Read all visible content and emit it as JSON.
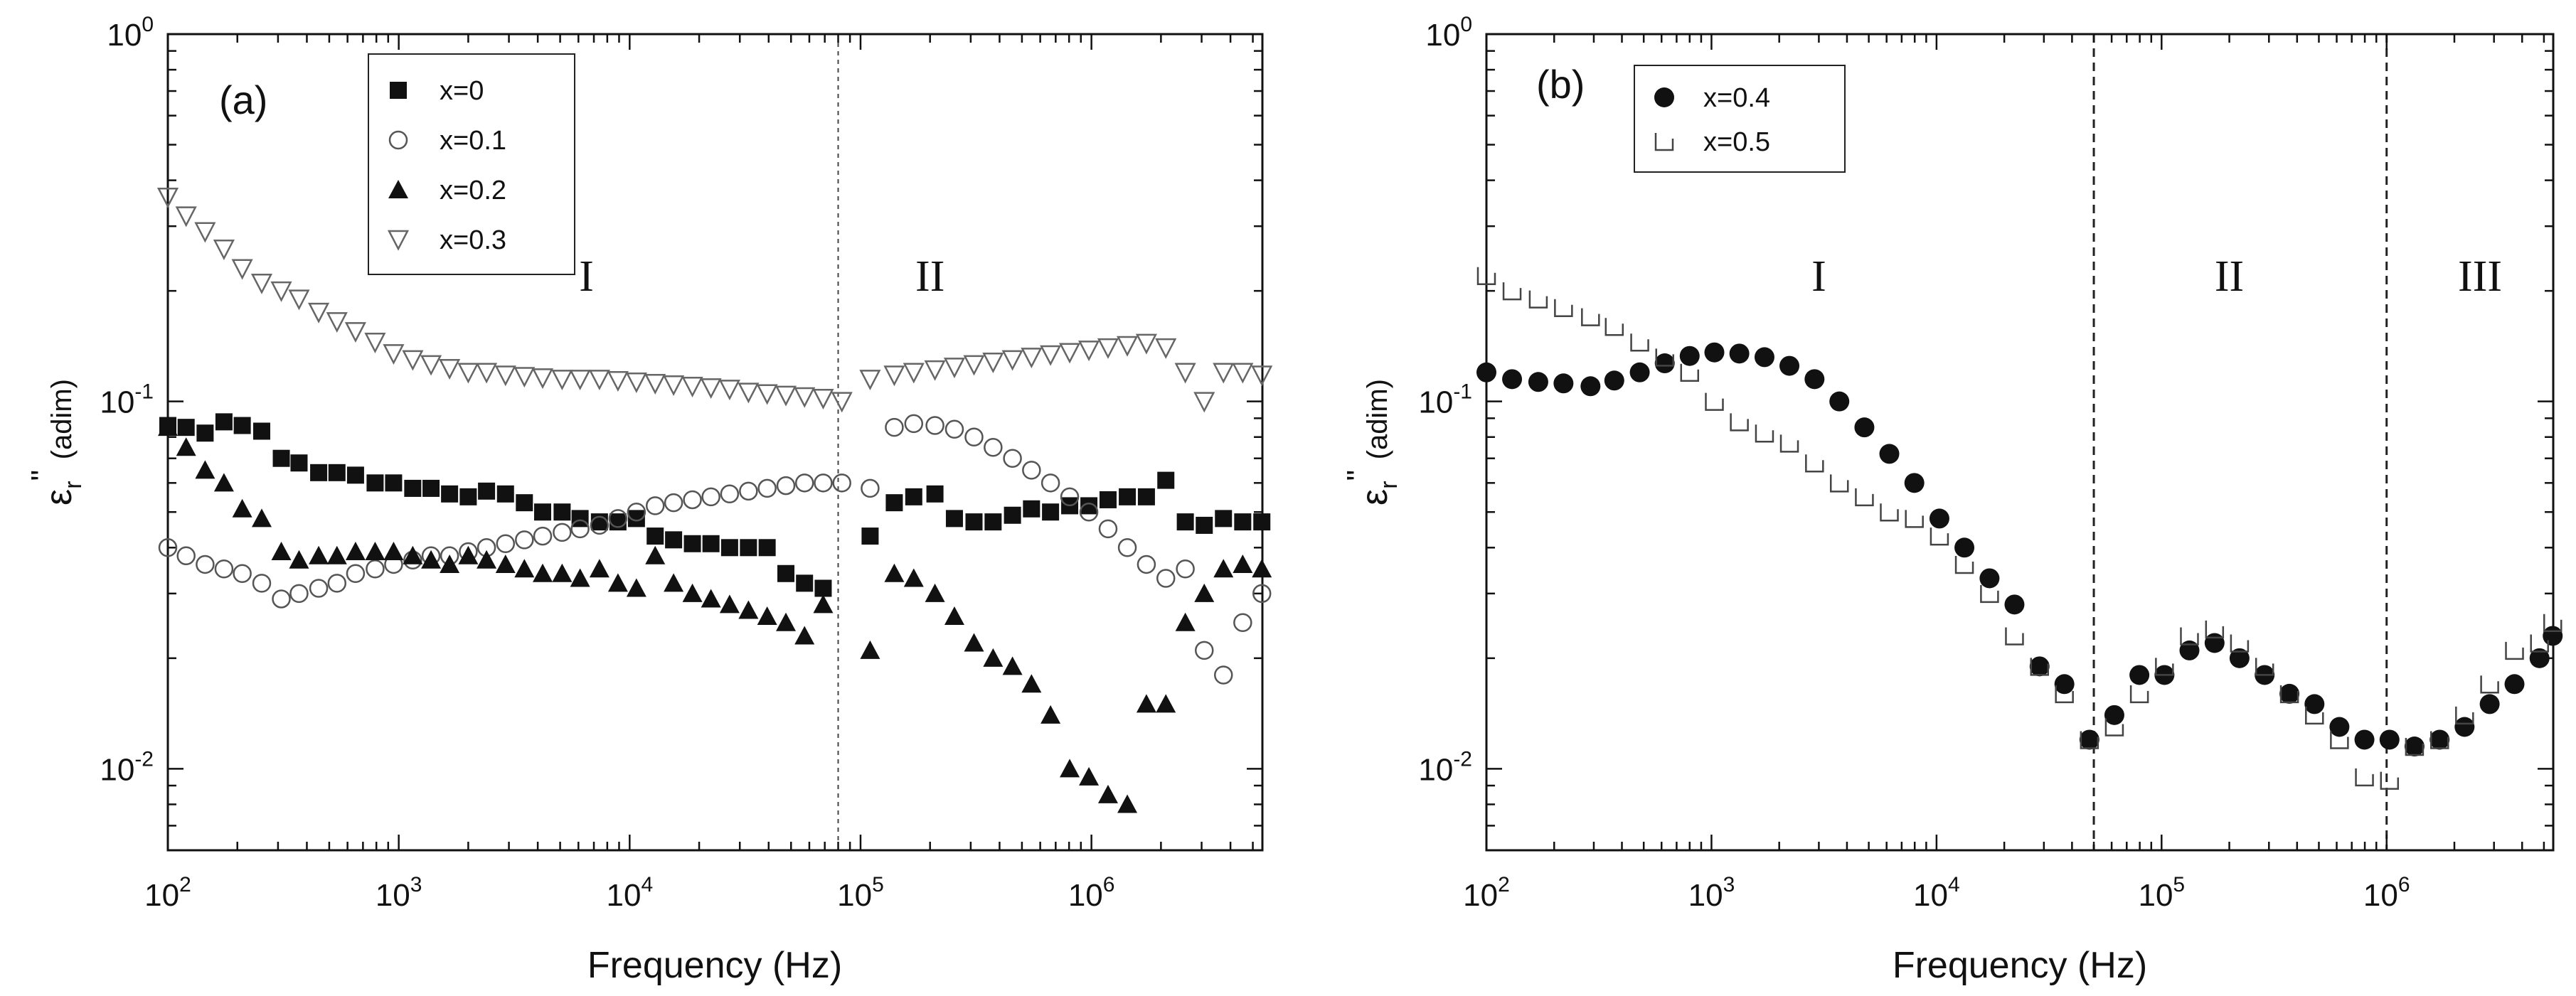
{
  "chart_data": [
    {
      "panel": "(a)",
      "type": "scatter",
      "xscale": "log",
      "yscale": "log",
      "xlim": [
        100,
        5500000
      ],
      "ylim": [
        0.006,
        1
      ],
      "xlabel": "Frequency (Hz)",
      "ylabel": "εr\" (adim)",
      "ylabel_main": "ε",
      "ylabel_sub": "r",
      "ylabel_sup": "\"",
      "ylabel_units": "(adim)",
      "xticks": [
        {
          "value": 100,
          "base": "10",
          "exp": "2"
        },
        {
          "value": 1000,
          "base": "10",
          "exp": "3"
        },
        {
          "value": 10000,
          "base": "10",
          "exp": "4"
        },
        {
          "value": 100000,
          "base": "10",
          "exp": "5"
        },
        {
          "value": 1000000,
          "base": "10",
          "exp": "6"
        }
      ],
      "yticks": [
        {
          "value": 0.01,
          "base": "10",
          "exp": "-2"
        },
        {
          "value": 0.1,
          "base": "10",
          "exp": "-1"
        },
        {
          "value": 1,
          "base": "10",
          "exp": "0"
        }
      ],
      "vlines": [
        80000
      ],
      "regions": [
        {
          "label": "I",
          "x": 6500,
          "y": 0.2
        },
        {
          "label": "II",
          "x": 200000,
          "y": 0.2
        }
      ],
      "legend_position": "top-left",
      "series": [
        {
          "name": "x=0",
          "marker": "square-filled",
          "x": [
            100,
            120,
            145,
            175,
            210,
            255,
            310,
            370,
            450,
            540,
            650,
            790,
            950,
            1150,
            1380,
            1660,
            2000,
            2400,
            2900,
            3500,
            4200,
            5100,
            6100,
            7400,
            8900,
            10700,
            12900,
            15500,
            18700,
            22500,
            27100,
            32700,
            39400,
            47500,
            57200,
            68900,
            110000,
            140000,
            170000,
            210000,
            255000,
            310000,
            375000,
            455000,
            550000,
            665000,
            805000,
            975000,
            1180000,
            1430000,
            1730000,
            2100000,
            2550000,
            3080000,
            3730000,
            4520000,
            5470000
          ],
          "y": [
            0.086,
            0.085,
            0.082,
            0.088,
            0.086,
            0.083,
            0.07,
            0.068,
            0.064,
            0.064,
            0.063,
            0.06,
            0.06,
            0.058,
            0.058,
            0.056,
            0.055,
            0.057,
            0.056,
            0.053,
            0.05,
            0.05,
            0.048,
            0.047,
            0.047,
            0.048,
            0.043,
            0.042,
            0.041,
            0.041,
            0.04,
            0.04,
            0.04,
            0.034,
            0.032,
            0.031,
            0.043,
            0.053,
            0.055,
            0.056,
            0.048,
            0.047,
            0.047,
            0.049,
            0.051,
            0.05,
            0.052,
            0.052,
            0.054,
            0.055,
            0.055,
            0.061,
            0.047,
            0.046,
            0.048,
            0.047,
            0.047
          ]
        },
        {
          "name": "x=0.1",
          "marker": "circle-open",
          "x": [
            100,
            120,
            145,
            175,
            210,
            255,
            310,
            370,
            450,
            540,
            650,
            790,
            950,
            1150,
            1380,
            1660,
            2000,
            2400,
            2900,
            3500,
            4200,
            5100,
            6100,
            7400,
            8900,
            10700,
            12900,
            15500,
            18700,
            22500,
            27100,
            32700,
            39400,
            47500,
            57200,
            68900,
            83000,
            110000,
            140000,
            170000,
            210000,
            255000,
            310000,
            375000,
            455000,
            550000,
            665000,
            805000,
            975000,
            1180000,
            1430000,
            1730000,
            2100000,
            2550000,
            3080000,
            3730000,
            4520000,
            5470000
          ],
          "y": [
            0.04,
            0.038,
            0.036,
            0.035,
            0.034,
            0.032,
            0.029,
            0.03,
            0.031,
            0.032,
            0.034,
            0.035,
            0.036,
            0.037,
            0.038,
            0.038,
            0.039,
            0.04,
            0.041,
            0.042,
            0.043,
            0.044,
            0.045,
            0.046,
            0.048,
            0.05,
            0.052,
            0.053,
            0.054,
            0.055,
            0.056,
            0.057,
            0.058,
            0.059,
            0.06,
            0.06,
            0.06,
            0.058,
            0.085,
            0.087,
            0.086,
            0.084,
            0.08,
            0.075,
            0.07,
            0.065,
            0.06,
            0.055,
            0.05,
            0.045,
            0.04,
            0.036,
            0.033,
            0.035,
            0.021,
            0.018,
            0.025,
            0.03
          ]
        },
        {
          "name": "x=0.2",
          "marker": "triangle-filled",
          "x": [
            100,
            120,
            145,
            175,
            210,
            255,
            310,
            370,
            450,
            540,
            650,
            790,
            950,
            1150,
            1380,
            1660,
            2000,
            2400,
            2900,
            3500,
            4200,
            5100,
            6100,
            7400,
            8900,
            10700,
            12900,
            15500,
            18700,
            22500,
            27100,
            32700,
            39400,
            47500,
            57200,
            68900,
            110000,
            140000,
            170000,
            210000,
            255000,
            310000,
            375000,
            455000,
            550000,
            665000,
            805000,
            975000,
            1180000,
            1430000,
            1730000,
            2100000,
            2550000,
            3080000,
            3730000,
            4520000,
            5470000
          ],
          "y": [
            0.085,
            0.075,
            0.065,
            0.06,
            0.051,
            0.048,
            0.039,
            0.037,
            0.038,
            0.038,
            0.039,
            0.039,
            0.039,
            0.038,
            0.037,
            0.036,
            0.038,
            0.037,
            0.036,
            0.035,
            0.034,
            0.034,
            0.033,
            0.035,
            0.032,
            0.031,
            0.038,
            0.032,
            0.03,
            0.029,
            0.028,
            0.027,
            0.026,
            0.025,
            0.023,
            0.028,
            0.021,
            0.034,
            0.033,
            0.03,
            0.026,
            0.022,
            0.02,
            0.019,
            0.017,
            0.014,
            0.01,
            0.0095,
            0.0085,
            0.008,
            0.015,
            0.015,
            0.025,
            0.03,
            0.035,
            0.036,
            0.035
          ]
        },
        {
          "name": "x=0.3",
          "marker": "triangle-down-open",
          "x": [
            100,
            120,
            145,
            175,
            210,
            255,
            310,
            370,
            450,
            540,
            650,
            790,
            950,
            1150,
            1380,
            1660,
            2000,
            2400,
            2900,
            3500,
            4200,
            5100,
            6100,
            7400,
            8900,
            10700,
            12900,
            15500,
            18700,
            22500,
            27100,
            32700,
            39400,
            47500,
            57200,
            68900,
            83000,
            110000,
            140000,
            170000,
            210000,
            255000,
            310000,
            375000,
            455000,
            550000,
            665000,
            805000,
            975000,
            1180000,
            1430000,
            1730000,
            2100000,
            2550000,
            3080000,
            3730000,
            4520000,
            5470000
          ],
          "y": [
            0.36,
            0.32,
            0.29,
            0.26,
            0.23,
            0.21,
            0.2,
            0.19,
            0.175,
            0.165,
            0.155,
            0.145,
            0.135,
            0.13,
            0.126,
            0.123,
            0.12,
            0.12,
            0.118,
            0.117,
            0.116,
            0.115,
            0.115,
            0.115,
            0.114,
            0.113,
            0.112,
            0.111,
            0.11,
            0.109,
            0.108,
            0.106,
            0.105,
            0.104,
            0.103,
            0.102,
            0.1,
            0.115,
            0.118,
            0.12,
            0.122,
            0.124,
            0.126,
            0.128,
            0.13,
            0.132,
            0.134,
            0.136,
            0.138,
            0.14,
            0.142,
            0.144,
            0.14,
            0.12,
            0.1,
            0.12,
            0.12,
            0.118
          ]
        }
      ]
    },
    {
      "panel": "(b)",
      "type": "scatter",
      "xscale": "log",
      "yscale": "log",
      "xlim": [
        100,
        5500000
      ],
      "ylim": [
        0.006,
        1
      ],
      "xlabel": "Frequency (Hz)",
      "ylabel": "εr\" (adim)",
      "ylabel_main": "ε",
      "ylabel_sub": "r",
      "ylabel_sup": "\"",
      "ylabel_units": "(adim)",
      "xticks": [
        {
          "value": 100,
          "base": "10",
          "exp": "2"
        },
        {
          "value": 1000,
          "base": "10",
          "exp": "3"
        },
        {
          "value": 10000,
          "base": "10",
          "exp": "4"
        },
        {
          "value": 100000,
          "base": "10",
          "exp": "5"
        },
        {
          "value": 1000000,
          "base": "10",
          "exp": "6"
        }
      ],
      "yticks": [
        {
          "value": 0.01,
          "base": "10",
          "exp": "-2"
        },
        {
          "value": 0.1,
          "base": "10",
          "exp": "-1"
        },
        {
          "value": 1,
          "base": "10",
          "exp": "0"
        }
      ],
      "vlines": [
        50000,
        1000000
      ],
      "regions": [
        {
          "label": "I",
          "x": 3000,
          "y": 0.2
        },
        {
          "label": "II",
          "x": 200000,
          "y": 0.2
        },
        {
          "label": "III",
          "x": 2600000,
          "y": 0.2
        }
      ],
      "legend_position": "top-left",
      "series": [
        {
          "name": "x=0.4",
          "marker": "circle-filled",
          "x": [
            100,
            130,
            170,
            220,
            290,
            370,
            480,
            620,
            800,
            1030,
            1330,
            1720,
            2220,
            2870,
            3700,
            4780,
            6170,
            7970,
            10300,
            13300,
            17200,
            22200,
            28700,
            37000,
            47800,
            61700,
            79700,
            103000,
            133000,
            172000,
            222000,
            287000,
            370000,
            478000,
            617000,
            797000,
            1030000,
            1330000,
            1720000,
            2220000,
            2870000,
            3700000,
            4780000,
            5470000
          ],
          "y": [
            0.12,
            0.115,
            0.113,
            0.112,
            0.11,
            0.114,
            0.12,
            0.127,
            0.133,
            0.136,
            0.135,
            0.132,
            0.125,
            0.115,
            0.1,
            0.085,
            0.072,
            0.06,
            0.048,
            0.04,
            0.033,
            0.028,
            0.019,
            0.017,
            0.012,
            0.014,
            0.018,
            0.018,
            0.021,
            0.022,
            0.02,
            0.018,
            0.016,
            0.015,
            0.013,
            0.012,
            0.012,
            0.0115,
            0.012,
            0.013,
            0.015,
            0.017,
            0.02,
            0.023
          ]
        },
        {
          "name": "x=0.5",
          "marker": "square-open-cut",
          "x": [
            100,
            130,
            170,
            220,
            290,
            370,
            480,
            620,
            800,
            1030,
            1330,
            1720,
            2220,
            2870,
            3700,
            4780,
            6170,
            7970,
            10300,
            13300,
            17200,
            22200,
            28700,
            37000,
            47800,
            61700,
            79700,
            103000,
            133000,
            172000,
            222000,
            287000,
            370000,
            478000,
            617000,
            797000,
            1030000,
            1330000,
            1720000,
            2220000,
            2870000,
            3700000,
            4780000,
            5470000
          ],
          "y": [
            0.22,
            0.2,
            0.19,
            0.18,
            0.17,
            0.16,
            0.145,
            0.132,
            0.12,
            0.1,
            0.088,
            0.082,
            0.077,
            0.068,
            0.06,
            0.055,
            0.05,
            0.048,
            0.043,
            0.036,
            0.03,
            0.023,
            0.019,
            0.016,
            0.012,
            0.013,
            0.016,
            0.019,
            0.023,
            0.024,
            0.022,
            0.019,
            0.016,
            0.014,
            0.012,
            0.0095,
            0.0093,
            0.0115,
            0.012,
            0.014,
            0.017,
            0.021,
            0.022,
            0.025
          ]
        }
      ]
    }
  ]
}
